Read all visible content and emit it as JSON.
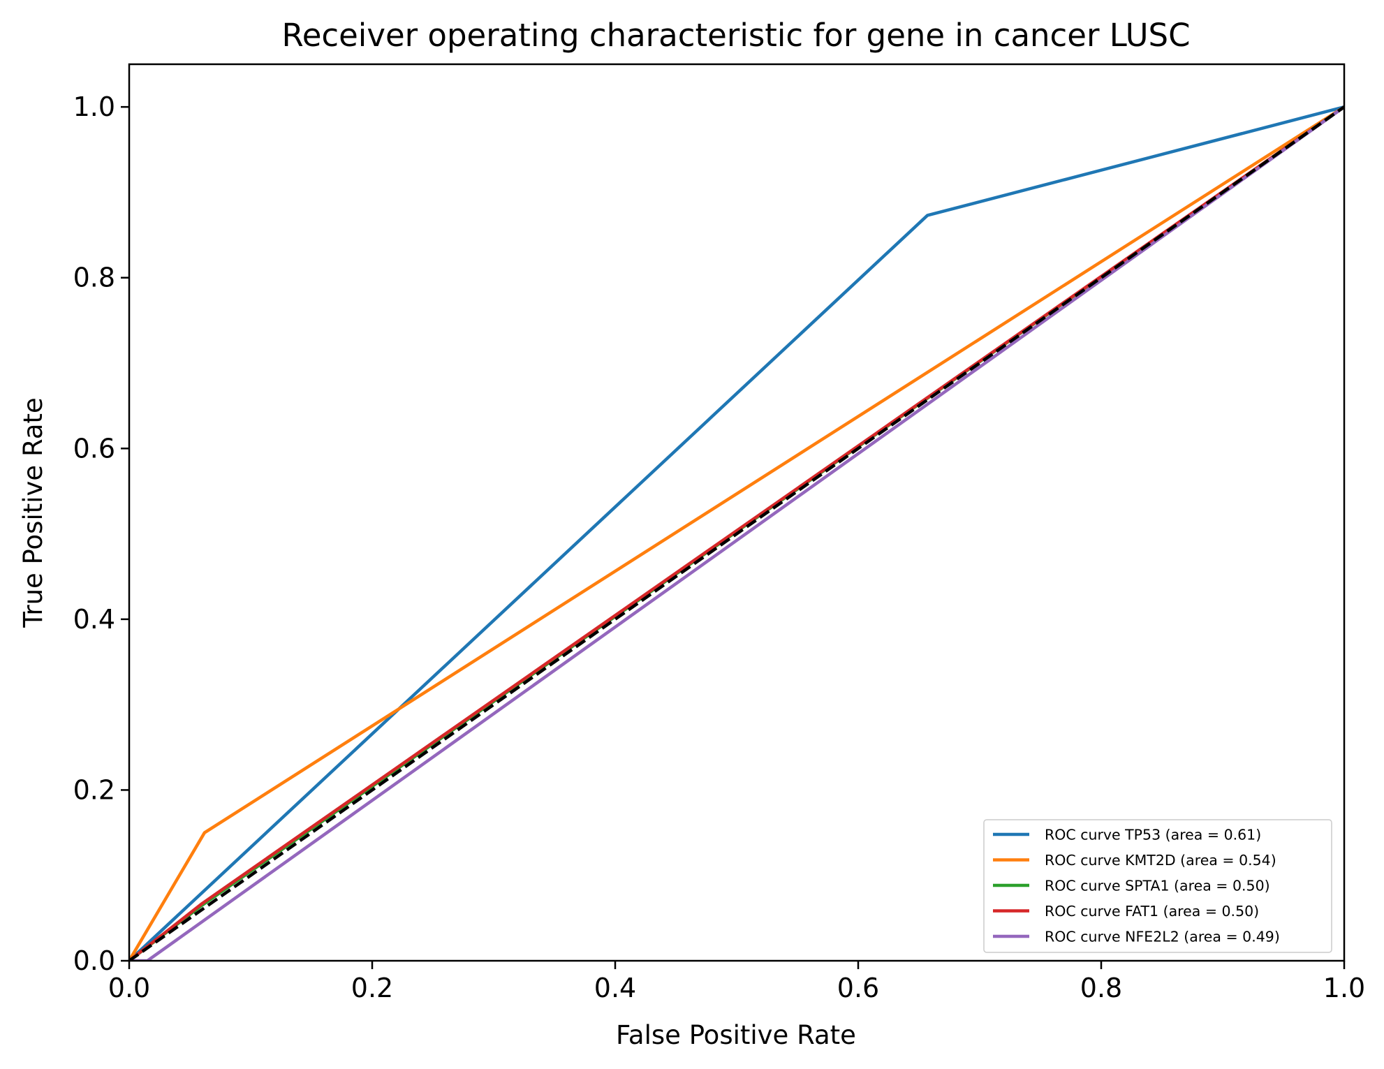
{
  "chart_data": {
    "type": "line",
    "title": "Receiver operating characteristic for gene in cancer LUSC",
    "xlabel": "False Positive Rate",
    "ylabel": "True Positive Rate",
    "xlim": [
      0.0,
      1.0
    ],
    "ylim": [
      0.0,
      1.05
    ],
    "xticks": [
      "0.0",
      "0.2",
      "0.4",
      "0.6",
      "0.8",
      "1.0"
    ],
    "yticks": [
      "0.0",
      "0.2",
      "0.4",
      "0.6",
      "0.8",
      "1.0"
    ],
    "grid": false,
    "legend_position": "lower right",
    "series": [
      {
        "name": "ROC curve TP53 (area = 0.61)",
        "color": "#1f77b4",
        "x": [
          0.0,
          0.657,
          1.0
        ],
        "y": [
          0.0,
          0.873,
          1.0
        ]
      },
      {
        "name": "ROC curve KMT2D (area = 0.54)",
        "color": "#ff7f0e",
        "x": [
          0.0,
          0.062,
          1.0
        ],
        "y": [
          0.0,
          0.15,
          1.0
        ]
      },
      {
        "name": "ROC curve SPTA1 (area = 0.50)",
        "color": "#2ca02c",
        "x": [
          0.0,
          0.06,
          1.0
        ],
        "y": [
          0.0,
          0.065,
          1.0
        ]
      },
      {
        "name": "ROC curve FAT1 (area = 0.50)",
        "color": "#d62728",
        "x": [
          0.0,
          0.06,
          1.0
        ],
        "y": [
          0.0,
          0.067,
          1.0
        ]
      },
      {
        "name": "ROC curve NFE2L2 (area = 0.49)",
        "color": "#9467bd",
        "x": [
          0.0,
          0.015,
          1.0
        ],
        "y": [
          0.0,
          0.0,
          1.0
        ]
      }
    ],
    "reference_line": {
      "x": [
        0.0,
        1.0
      ],
      "y": [
        0.0,
        1.0
      ],
      "color": "#000000",
      "style": "dashed"
    }
  }
}
